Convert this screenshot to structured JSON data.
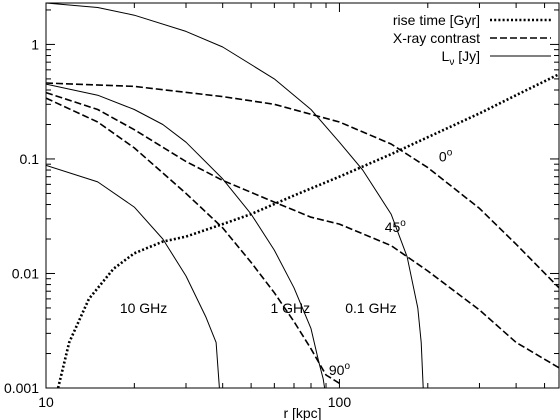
{
  "chart_data": {
    "type": "line",
    "xscale": "log",
    "yscale": "log",
    "xlim": [
      10,
      560
    ],
    "ylim": [
      0.001,
      2.3
    ],
    "xlabel": "r [kpc]",
    "ylabel": "",
    "x_ticks": [
      {
        "value": 10,
        "label": "10"
      },
      {
        "value": 100,
        "label": "100"
      }
    ],
    "y_ticks": [
      {
        "value": 0.001,
        "label": "0.001"
      },
      {
        "value": 0.01,
        "label": "0.01"
      },
      {
        "value": 0.1,
        "label": "0.1"
      },
      {
        "value": 1,
        "label": "1"
      }
    ],
    "legend": {
      "position": "top-right",
      "entries": [
        {
          "label": "rise time [Gyr]",
          "style": "dotted"
        },
        {
          "label": "X-ray contrast",
          "style": "dashed"
        },
        {
          "label": "L_v [Jy]",
          "base": "L",
          "sub": "ν",
          "suffix": " [Jy]",
          "style": "solid"
        }
      ]
    },
    "annotations": [
      {
        "text": "0°",
        "x": 230,
        "y": 0.095
      },
      {
        "text": "45°",
        "x": 155,
        "y": 0.023
      },
      {
        "text": "90°",
        "x": 100,
        "y": 0.0013
      },
      {
        "text": "10 GHz",
        "x": 21.5,
        "y": 0.0045
      },
      {
        "text": "1 GHz",
        "x": 68,
        "y": 0.0045
      },
      {
        "text": "0.1 GHz",
        "x": 128,
        "y": 0.0045
      }
    ],
    "series": [
      {
        "group": "rise time [Gyr]",
        "style": "dotted",
        "x": [
          11,
          12,
          14,
          17,
          20,
          25,
          30,
          40,
          50,
          70,
          100,
          150,
          200,
          300,
          400,
          560
        ],
        "y": [
          0.001,
          0.0025,
          0.006,
          0.011,
          0.015,
          0.019,
          0.021,
          0.027,
          0.033,
          0.048,
          0.07,
          0.11,
          0.155,
          0.25,
          0.36,
          0.55
        ]
      },
      {
        "group": "X-ray contrast",
        "label": "0°",
        "style": "dashed",
        "x": [
          10,
          20,
          40,
          60,
          100,
          150,
          200,
          300,
          400,
          560
        ],
        "y": [
          0.46,
          0.43,
          0.35,
          0.3,
          0.21,
          0.135,
          0.084,
          0.037,
          0.018,
          0.0075
        ]
      },
      {
        "group": "X-ray contrast",
        "label": "45°",
        "style": "dashed",
        "x": [
          10,
          15,
          20,
          30,
          40,
          60,
          80,
          100,
          150,
          200,
          300,
          400,
          560
        ],
        "y": [
          0.38,
          0.27,
          0.18,
          0.095,
          0.065,
          0.042,
          0.031,
          0.027,
          0.0175,
          0.0105,
          0.0048,
          0.0025,
          0.0015
        ]
      },
      {
        "group": "X-ray contrast",
        "label": "90°",
        "style": "dashed",
        "x": [
          10,
          15,
          20,
          30,
          40,
          50,
          60,
          70,
          80,
          90,
          100
        ],
        "y": [
          0.34,
          0.21,
          0.125,
          0.05,
          0.025,
          0.0125,
          0.0068,
          0.0038,
          0.0022,
          0.0013,
          0.0011
        ]
      },
      {
        "group": "L_v [Jy]",
        "label": "0.1 GHz",
        "style": "solid",
        "x": [
          10,
          15,
          20,
          30,
          40,
          60,
          80,
          100,
          120,
          150,
          170,
          185,
          190,
          193
        ],
        "y": [
          2.3,
          2.1,
          1.8,
          1.3,
          0.95,
          0.5,
          0.27,
          0.14,
          0.08,
          0.033,
          0.014,
          0.005,
          0.0025,
          0.001
        ]
      },
      {
        "group": "L_v [Jy]",
        "label": "1 GHz",
        "style": "solid",
        "x": [
          10,
          15,
          20,
          25,
          30,
          40,
          50,
          60,
          70,
          80,
          85,
          88,
          89
        ],
        "y": [
          0.45,
          0.36,
          0.27,
          0.2,
          0.14,
          0.067,
          0.033,
          0.016,
          0.0075,
          0.0033,
          0.0017,
          0.0012,
          0.001
        ]
      },
      {
        "group": "L_v [Jy]",
        "label": "10 GHz",
        "style": "solid",
        "x": [
          10,
          15,
          20,
          25,
          30,
          35,
          38,
          39
        ],
        "y": [
          0.088,
          0.063,
          0.038,
          0.02,
          0.0095,
          0.0042,
          0.0025,
          0.001
        ]
      }
    ]
  }
}
